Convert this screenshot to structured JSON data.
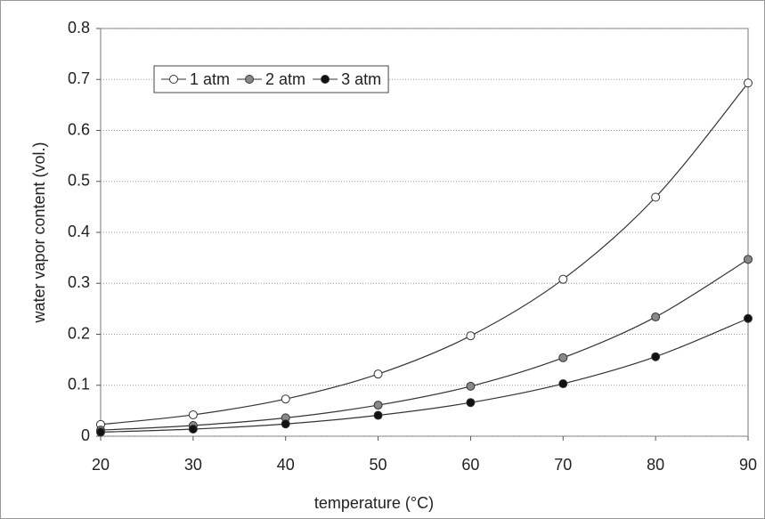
{
  "chart_data": {
    "type": "line",
    "x_label": "temperature (°C)",
    "y_label": "water vapor content (vol.)",
    "x": [
      20,
      30,
      40,
      50,
      60,
      70,
      80,
      90
    ],
    "series": [
      {
        "name": "1 atm",
        "color": "#ffffff",
        "values": [
          0.023,
          0.042,
          0.073,
          0.122,
          0.197,
          0.308,
          0.469,
          0.693
        ]
      },
      {
        "name": "2 atm",
        "color": "#888888",
        "values": [
          0.012,
          0.021,
          0.036,
          0.061,
          0.098,
          0.154,
          0.234,
          0.347
        ]
      },
      {
        "name": "3 atm",
        "color": "#111111",
        "values": [
          0.008,
          0.014,
          0.024,
          0.041,
          0.066,
          0.103,
          0.156,
          0.231
        ]
      }
    ],
    "xlim": [
      20,
      90
    ],
    "xticks": [
      20,
      30,
      40,
      50,
      60,
      70,
      80,
      90
    ],
    "ylim": [
      0,
      0.8
    ],
    "yticks": [
      0,
      0.1,
      0.2,
      0.3,
      0.4,
      0.5,
      0.6,
      0.7,
      0.8
    ],
    "grid": true,
    "legend": "top-left"
  }
}
